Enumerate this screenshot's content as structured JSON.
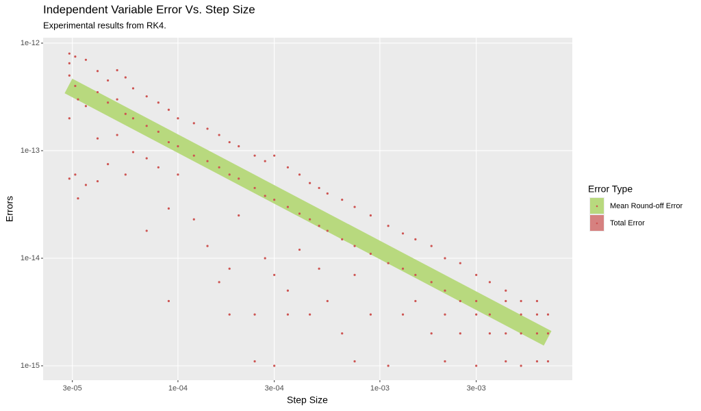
{
  "chart_data": {
    "type": "scatter",
    "title": "Independent Variable Error Vs. Step Size",
    "subtitle": "Experimental results from RK4.",
    "x_label": "Step Size",
    "y_label": "Errors",
    "x_log": true,
    "y_log": true,
    "grid": true,
    "legend_title": "Error Type",
    "legend_position": "right",
    "xlim": [
      2.15e-05,
      0.00897
    ],
    "ylim": [
      7.35e-16,
      1.124e-12
    ],
    "xticks": [
      {
        "value": 3e-05,
        "label": "3e-05"
      },
      {
        "value": 0.0001,
        "label": "1e-04"
      },
      {
        "value": 0.0003,
        "label": "3e-04"
      },
      {
        "value": 0.001,
        "label": "1e-03"
      },
      {
        "value": 0.003,
        "label": "3e-03"
      }
    ],
    "yticks": [
      {
        "value": 1e-15,
        "label": "1e-15"
      },
      {
        "value": 1e-14,
        "label": "1e-14"
      },
      {
        "value": 1e-13,
        "label": "1e-13"
      },
      {
        "value": 1e-12,
        "label": "1e-12"
      }
    ],
    "series": [
      {
        "name": "Mean Round-off Error",
        "color": "#b8d97e",
        "mark": "band",
        "x": [
          2.87e-05,
          0.00677
        ],
        "values": [
          4e-13,
          1.8e-15
        ]
      },
      {
        "name": "Total Error",
        "color": "#cd5452",
        "mark": "point",
        "x": [
          2.9e-05,
          2.9e-05,
          2.9e-05,
          2.9e-05,
          2.9e-05,
          3.1e-05,
          3.1e-05,
          3.1e-05,
          3.2e-05,
          3.2e-05,
          3.5e-05,
          3.5e-05,
          3.5e-05,
          4e-05,
          4e-05,
          4e-05,
          4e-05,
          4.5e-05,
          4.5e-05,
          4.5e-05,
          5e-05,
          5e-05,
          5e-05,
          5.5e-05,
          5.5e-05,
          5.5e-05,
          6e-05,
          6e-05,
          6e-05,
          7e-05,
          7e-05,
          7e-05,
          7e-05,
          8e-05,
          8e-05,
          8e-05,
          9e-05,
          9e-05,
          9e-05,
          9e-05,
          0.0001,
          0.0001,
          0.0001,
          0.00012,
          0.00012,
          0.00012,
          0.00014,
          0.00014,
          0.00014,
          0.00016,
          0.00016,
          0.00016,
          0.00018,
          0.00018,
          0.00018,
          0.00018,
          0.0002,
          0.0002,
          0.0002,
          0.00024,
          0.00024,
          0.00024,
          0.00024,
          0.00027,
          0.00027,
          0.00027,
          0.0003,
          0.0003,
          0.0003,
          0.0003,
          0.00035,
          0.00035,
          0.00035,
          0.00035,
          0.0004,
          0.0004,
          0.0004,
          0.00045,
          0.00045,
          0.00045,
          0.0005,
          0.0005,
          0.0005,
          0.00055,
          0.00055,
          0.00055,
          0.00065,
          0.00065,
          0.00065,
          0.00075,
          0.00075,
          0.00075,
          0.00075,
          0.0009,
          0.0009,
          0.0009,
          0.0011,
          0.0011,
          0.0011,
          0.0013,
          0.0013,
          0.0013,
          0.0015,
          0.0015,
          0.0015,
          0.0018,
          0.0018,
          0.0018,
          0.0021,
          0.0021,
          0.0021,
          0.0021,
          0.0025,
          0.0025,
          0.0025,
          0.003,
          0.003,
          0.003,
          0.003,
          0.0035,
          0.0035,
          0.0035,
          0.0042,
          0.0042,
          0.0042,
          0.0042,
          0.005,
          0.005,
          0.005,
          0.005,
          0.006,
          0.006,
          0.006,
          0.006,
          0.0068,
          0.0068,
          0.0068
        ],
        "values": [
          8e-13,
          6.5e-13,
          5e-13,
          2e-13,
          5.5e-14,
          7.5e-13,
          4e-13,
          6e-14,
          3.6e-14,
          3e-13,
          7e-13,
          4.8e-14,
          2.6e-13,
          5.5e-13,
          3.5e-13,
          1.3e-13,
          5.2e-14,
          4.5e-13,
          2.8e-13,
          7.5e-14,
          5.6e-13,
          3e-13,
          1.4e-13,
          4.8e-13,
          2.2e-13,
          6e-14,
          3.8e-13,
          2e-13,
          9.7e-14,
          3.2e-13,
          1.7e-13,
          8.5e-14,
          1.8e-14,
          2.8e-13,
          1.5e-13,
          7e-14,
          2.4e-13,
          1.2e-13,
          2.9e-14,
          4e-15,
          2e-13,
          1.1e-13,
          6e-14,
          1.8e-13,
          9e-14,
          2.3e-14,
          1.6e-13,
          8e-14,
          1.3e-14,
          1.4e-13,
          7e-14,
          6e-15,
          1.2e-13,
          6e-14,
          3e-15,
          8e-15,
          1.1e-13,
          5.5e-14,
          2.5e-14,
          9e-14,
          4.5e-14,
          1.1e-15,
          3e-15,
          8e-14,
          3.8e-14,
          1e-14,
          9e-14,
          3.5e-14,
          1e-15,
          7e-15,
          7e-14,
          3e-14,
          5e-15,
          3e-15,
          6e-14,
          2.6e-14,
          1.2e-14,
          5e-14,
          2.3e-14,
          3e-15,
          4.5e-14,
          2e-14,
          8e-15,
          4e-14,
          1.8e-14,
          4e-15,
          3.5e-14,
          1.5e-14,
          2e-15,
          3e-14,
          1.3e-14,
          7e-15,
          1.1e-15,
          2.5e-14,
          1.1e-14,
          3e-15,
          2e-14,
          9e-15,
          1e-15,
          1.7e-14,
          8e-15,
          3e-15,
          1.5e-14,
          7e-15,
          4e-15,
          1.3e-14,
          6e-15,
          2e-15,
          1e-14,
          5e-15,
          3e-15,
          1.1e-15,
          9e-15,
          4e-15,
          2e-15,
          7e-15,
          4e-15,
          3e-15,
          1e-15,
          6e-15,
          3e-15,
          2e-15,
          5e-15,
          4e-15,
          2e-15,
          1.1e-15,
          4e-15,
          3e-15,
          2e-15,
          1e-15,
          4e-15,
          3e-15,
          2e-15,
          1.1e-15,
          3e-15,
          2e-15,
          1.1e-15
        ]
      }
    ]
  }
}
